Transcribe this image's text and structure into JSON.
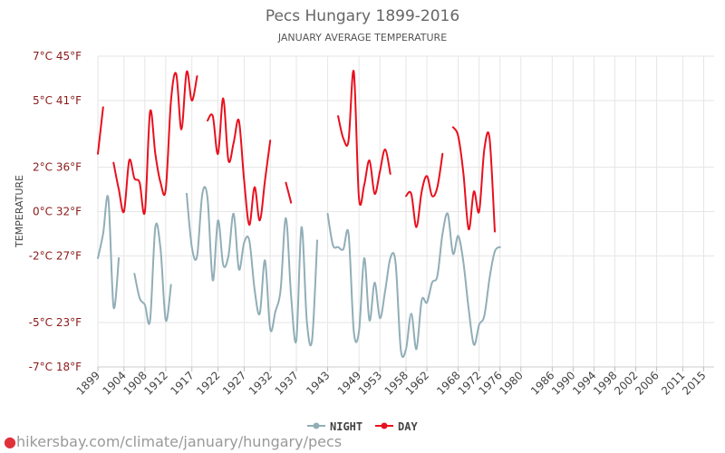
{
  "chart_data": {
    "type": "line",
    "title": "Pecs Hungary 1899-2016",
    "subtitle": "JANUARY AVERAGE TEMPERATURE",
    "ylabel": "TEMPERATURE",
    "ylim": [
      -7,
      7
    ],
    "y_ticks": [
      {
        "value": 7,
        "label": "7°C 45°F"
      },
      {
        "value": 5,
        "label": "5°C 41°F"
      },
      {
        "value": 2,
        "label": "2°C 36°F"
      },
      {
        "value": 0,
        "label": "0°C 32°F"
      },
      {
        "value": -2,
        "label": "-2°C 27°F"
      },
      {
        "value": -5,
        "label": "-5°C 23°F"
      },
      {
        "value": -7,
        "label": "-7°C 18°F"
      }
    ],
    "xlim": [
      1899,
      2017
    ],
    "x_ticks": [
      1899,
      1904,
      1908,
      1912,
      1917,
      1922,
      1927,
      1932,
      1937,
      1943,
      1949,
      1953,
      1958,
      1962,
      1968,
      1972,
      1976,
      1980,
      1986,
      1990,
      1994,
      1998,
      2002,
      2006,
      2011,
      2015
    ],
    "grid": true,
    "legend_position": "bottom",
    "series": [
      {
        "name": "NIGHT",
        "color": "#91aeb7",
        "segments": [
          [
            [
              1899,
              -2.1
            ],
            [
              1900,
              -1.0
            ],
            [
              1901,
              0.6
            ],
            [
              1902,
              -4.3
            ],
            [
              1903,
              -2.1
            ]
          ],
          [
            [
              1906,
              -2.8
            ],
            [
              1907,
              -3.9
            ],
            [
              1908,
              -4.2
            ],
            [
              1909,
              -4.9
            ],
            [
              1910,
              -0.7
            ],
            [
              1911,
              -1.7
            ],
            [
              1912,
              -4.9
            ],
            [
              1913,
              -3.3
            ]
          ],
          [
            [
              1916,
              0.8
            ],
            [
              1917,
              -1.6
            ],
            [
              1918,
              -2.0
            ],
            [
              1919,
              0.8
            ],
            [
              1920,
              0.6
            ],
            [
              1921,
              -3.1
            ],
            [
              1922,
              -0.4
            ],
            [
              1923,
              -2.4
            ],
            [
              1924,
              -2.0
            ],
            [
              1925,
              -0.1
            ],
            [
              1926,
              -2.6
            ],
            [
              1927,
              -1.4
            ],
            [
              1928,
              -1.3
            ],
            [
              1929,
              -3.5
            ],
            [
              1930,
              -4.6
            ],
            [
              1931,
              -2.2
            ],
            [
              1932,
              -5.3
            ],
            [
              1933,
              -4.5
            ],
            [
              1934,
              -3.5
            ],
            [
              1935,
              -0.3
            ],
            [
              1936,
              -3.8
            ],
            [
              1937,
              -5.8
            ],
            [
              1938,
              -0.7
            ],
            [
              1939,
              -4.9
            ],
            [
              1940,
              -5.8
            ],
            [
              1941,
              -1.3
            ]
          ],
          [
            [
              1943,
              -0.1
            ],
            [
              1944,
              -1.5
            ],
            [
              1945,
              -1.6
            ],
            [
              1946,
              -1.7
            ],
            [
              1947,
              -1.0
            ],
            [
              1948,
              -5.4
            ],
            [
              1949,
              -5.4
            ],
            [
              1950,
              -2.1
            ],
            [
              1951,
              -4.9
            ],
            [
              1952,
              -3.2
            ],
            [
              1953,
              -4.8
            ],
            [
              1954,
              -3.6
            ],
            [
              1955,
              -2.1
            ],
            [
              1956,
              -2.3
            ],
            [
              1957,
              -6.2
            ],
            [
              1958,
              -6.2
            ],
            [
              1959,
              -4.6
            ],
            [
              1960,
              -6.2
            ],
            [
              1961,
              -4.0
            ],
            [
              1962,
              -4.1
            ],
            [
              1963,
              -3.2
            ],
            [
              1964,
              -2.9
            ],
            [
              1965,
              -1.0
            ],
            [
              1966,
              -0.1
            ],
            [
              1967,
              -1.9
            ],
            [
              1968,
              -1.1
            ],
            [
              1969,
              -2.3
            ],
            [
              1970,
              -4.4
            ],
            [
              1971,
              -6.0
            ],
            [
              1972,
              -5.1
            ],
            [
              1973,
              -4.7
            ],
            [
              1974,
              -3.0
            ],
            [
              1975,
              -1.8
            ],
            [
              1976,
              -1.6
            ]
          ]
        ]
      },
      {
        "name": "DAY",
        "color": "#e8101e",
        "segments": [
          [
            [
              1899,
              2.6
            ],
            [
              1900,
              4.7
            ]
          ],
          [
            [
              1902,
              2.2
            ],
            [
              1903,
              1.0
            ],
            [
              1904,
              0.0
            ],
            [
              1905,
              2.3
            ],
            [
              1906,
              1.5
            ],
            [
              1907,
              1.3
            ],
            [
              1908,
              0.0
            ],
            [
              1909,
              4.5
            ],
            [
              1910,
              2.6
            ],
            [
              1911,
              1.3
            ],
            [
              1912,
              1.0
            ],
            [
              1913,
              5.0
            ],
            [
              1914,
              6.2
            ],
            [
              1915,
              3.7
            ],
            [
              1916,
              6.3
            ],
            [
              1917,
              5.0
            ],
            [
              1918,
              6.1
            ]
          ],
          [
            [
              1920,
              4.1
            ],
            [
              1921,
              4.3
            ],
            [
              1922,
              2.6
            ],
            [
              1923,
              5.1
            ],
            [
              1924,
              2.3
            ],
            [
              1925,
              3.1
            ],
            [
              1926,
              4.1
            ],
            [
              1927,
              1.4
            ],
            [
              1928,
              -0.6
            ],
            [
              1929,
              1.1
            ],
            [
              1930,
              -0.4
            ],
            [
              1931,
              1.4
            ],
            [
              1932,
              3.2
            ]
          ],
          [
            [
              1935,
              1.3
            ],
            [
              1936,
              0.4
            ]
          ],
          [
            [
              1945,
              4.3
            ],
            [
              1946,
              3.3
            ],
            [
              1947,
              3.2
            ],
            [
              1948,
              6.3
            ],
            [
              1949,
              0.6
            ],
            [
              1950,
              1.2
            ],
            [
              1951,
              2.3
            ],
            [
              1952,
              0.8
            ],
            [
              1953,
              1.8
            ],
            [
              1954,
              2.8
            ],
            [
              1955,
              1.7
            ]
          ],
          [
            [
              1958,
              0.7
            ],
            [
              1959,
              0.8
            ],
            [
              1960,
              -0.7
            ],
            [
              1961,
              0.9
            ],
            [
              1962,
              1.6
            ],
            [
              1963,
              0.7
            ],
            [
              1964,
              1.1
            ],
            [
              1965,
              2.6
            ]
          ],
          [
            [
              1967,
              3.8
            ],
            [
              1968,
              3.4
            ],
            [
              1969,
              1.7
            ],
            [
              1970,
              -0.8
            ],
            [
              1971,
              0.9
            ],
            [
              1972,
              0.0
            ],
            [
              1973,
              2.8
            ],
            [
              1974,
              3.3
            ],
            [
              1975,
              -0.9
            ]
          ]
        ]
      }
    ]
  },
  "legend": {
    "night_label": "NIGHT",
    "day_label": "DAY"
  },
  "footer": {
    "url": "hikersbay.com/climate/january/hungary/pecs"
  }
}
